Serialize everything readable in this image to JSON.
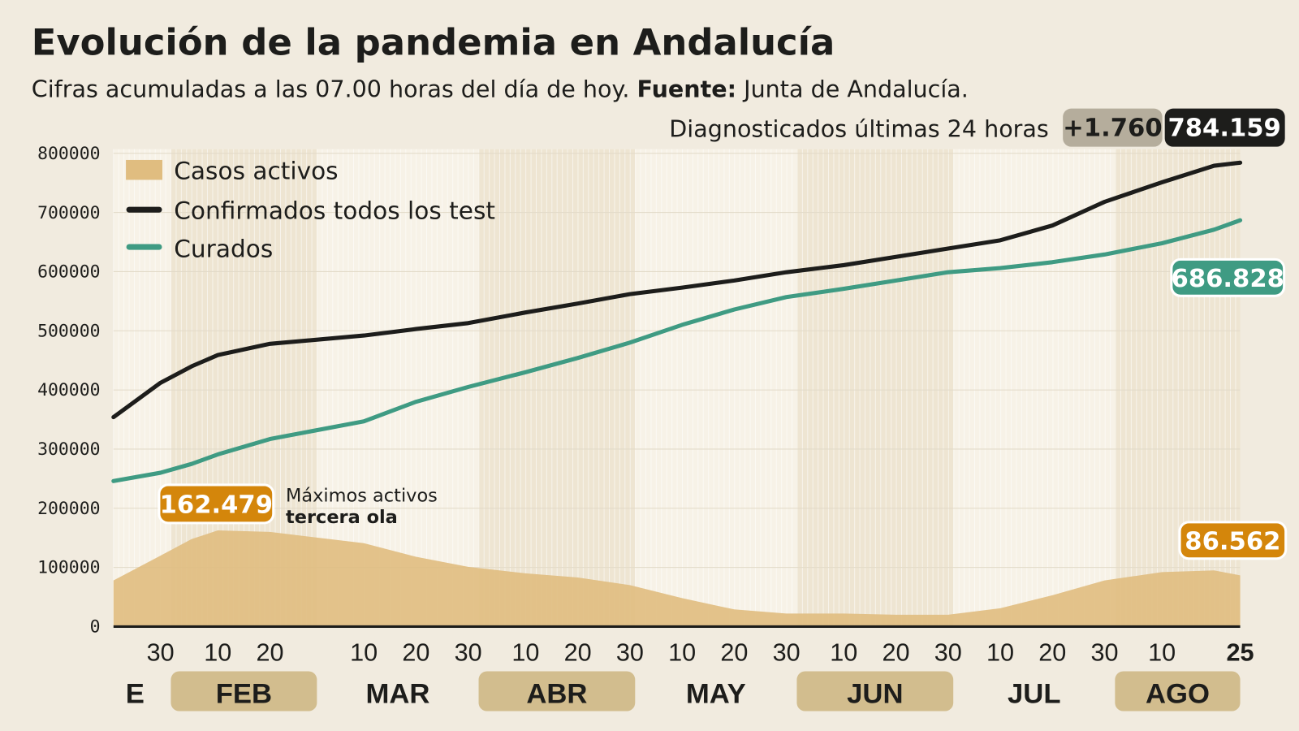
{
  "title": "Evolución de la pandemia en Andalucía",
  "subtitle": {
    "text": "Cifras acumuladas a las 07.00 horas del día de hoy. ",
    "source_label": "Fuente:",
    "source": " Junta de Andalucía."
  },
  "last24": {
    "label": "Diagnosticados últimas 24 horas",
    "delta": "+1.760",
    "total": "784.159"
  },
  "badges": {
    "curados": "686.828",
    "activos_max": "162.479",
    "activos_last": "86.562"
  },
  "annotation": {
    "line1": "Máximos activos",
    "line2": "tercera ola"
  },
  "colors": {
    "activos": "#e0bd80",
    "confirmados": "#1d1d1b",
    "curados": "#3f9b83",
    "delta_badge": "#b5ad9c",
    "orange_badge": "#d4860b",
    "month_band": "#d2bd8e",
    "background": "#f1ebdf"
  },
  "chart_data": {
    "type": "line",
    "title": "Evolución de la pandemia en Andalucía",
    "xlabel": "",
    "ylabel": "",
    "ylim": [
      0,
      800000
    ],
    "yticks": [
      "0",
      "100000",
      "200000",
      "300000",
      "400000",
      "500000",
      "600000",
      "700000",
      "800000"
    ],
    "xticks": [
      {
        "date": "01-30",
        "label": "30"
      },
      {
        "date": "02-10",
        "label": "10"
      },
      {
        "date": "02-20",
        "label": "20"
      },
      {
        "date": "03-10",
        "label": "10"
      },
      {
        "date": "03-20",
        "label": "20"
      },
      {
        "date": "03-30",
        "label": "30"
      },
      {
        "date": "04-10",
        "label": "10"
      },
      {
        "date": "04-20",
        "label": "20"
      },
      {
        "date": "04-30",
        "label": "30"
      },
      {
        "date": "05-10",
        "label": "10"
      },
      {
        "date": "05-20",
        "label": "20"
      },
      {
        "date": "05-30",
        "label": "30"
      },
      {
        "date": "06-10",
        "label": "10"
      },
      {
        "date": "06-20",
        "label": "20"
      },
      {
        "date": "06-30",
        "label": "30"
      },
      {
        "date": "07-10",
        "label": "10"
      },
      {
        "date": "07-20",
        "label": "20"
      },
      {
        "date": "07-30",
        "label": "30"
      },
      {
        "date": "08-10",
        "label": "10"
      },
      {
        "date": "08-25",
        "label": "25"
      }
    ],
    "months": [
      {
        "label": "E",
        "start": "01-21",
        "end": "02-01",
        "band": false
      },
      {
        "label": "FEB",
        "start": "02-01",
        "end": "03-01",
        "band": true
      },
      {
        "label": "MAR",
        "start": "03-01",
        "end": "04-01",
        "band": false
      },
      {
        "label": "ABR",
        "start": "04-01",
        "end": "05-01",
        "band": true
      },
      {
        "label": "MAY",
        "start": "05-01",
        "end": "06-01",
        "band": false
      },
      {
        "label": "JUN",
        "start": "06-01",
        "end": "07-01",
        "band": true
      },
      {
        "label": "JUL",
        "start": "07-01",
        "end": "08-01",
        "band": false
      },
      {
        "label": "AGO",
        "start": "08-01",
        "end": "08-25",
        "band": true
      }
    ],
    "x": [
      "01-21",
      "01-30",
      "02-05",
      "02-10",
      "02-20",
      "03-10",
      "03-20",
      "03-30",
      "04-10",
      "04-20",
      "04-30",
      "05-10",
      "05-20",
      "05-30",
      "06-10",
      "06-20",
      "06-30",
      "07-10",
      "07-20",
      "07-30",
      "08-10",
      "08-20",
      "08-25"
    ],
    "series": [
      {
        "name": "Casos activos",
        "type": "area",
        "values": [
          78000,
          120000,
          148000,
          162479,
          160000,
          141000,
          118000,
          101000,
          90000,
          83000,
          70000,
          48000,
          29000,
          22000,
          22000,
          20000,
          20000,
          31000,
          53000,
          78000,
          92000,
          95000,
          86562
        ]
      },
      {
        "name": "Confirmados todos los test",
        "type": "line",
        "values": [
          354000,
          412000,
          440000,
          459000,
          478000,
          492000,
          503000,
          513000,
          531000,
          546000,
          562000,
          573000,
          585000,
          599000,
          611000,
          625000,
          639000,
          653000,
          678000,
          718000,
          751000,
          779000,
          784159
        ]
      },
      {
        "name": "Curados",
        "type": "line",
        "values": [
          246000,
          260000,
          275000,
          291000,
          317000,
          347000,
          380000,
          405000,
          430000,
          454000,
          480000,
          510000,
          536000,
          557000,
          571000,
          585000,
          599000,
          606000,
          616000,
          629000,
          648000,
          671000,
          686828
        ]
      }
    ],
    "legend": "top-left",
    "grid": false
  }
}
